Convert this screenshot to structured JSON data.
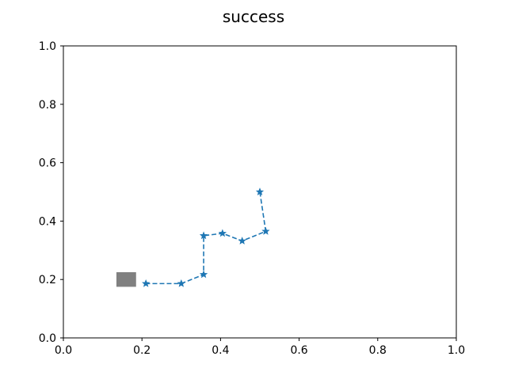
{
  "chart_data": {
    "type": "line",
    "title": "success",
    "xlabel": "",
    "ylabel": "",
    "xlim": [
      0.0,
      1.0
    ],
    "ylim": [
      0.0,
      1.0
    ],
    "x_ticks": [
      "0.0",
      "0.2",
      "0.4",
      "0.6",
      "0.8",
      "1.0"
    ],
    "y_ticks": [
      "0.0",
      "0.2",
      "0.4",
      "0.6",
      "0.8",
      "1.0"
    ],
    "grid": false,
    "legend": "none",
    "series": [
      {
        "color": "#1f77b4",
        "line_style": "dashed",
        "marker": "star",
        "points": [
          {
            "x": 0.5,
            "y": 0.5
          },
          {
            "x": 0.515,
            "y": 0.365
          },
          {
            "x": 0.455,
            "y": 0.332
          },
          {
            "x": 0.405,
            "y": 0.358
          },
          {
            "x": 0.357,
            "y": 0.35
          },
          {
            "x": 0.357,
            "y": 0.217
          },
          {
            "x": 0.3,
            "y": 0.186
          },
          {
            "x": 0.21,
            "y": 0.186
          }
        ]
      }
    ],
    "target": {
      "shape": "square",
      "color": "#808080",
      "x": 0.16,
      "y": 0.2,
      "width": 0.05,
      "height": 0.05
    }
  }
}
